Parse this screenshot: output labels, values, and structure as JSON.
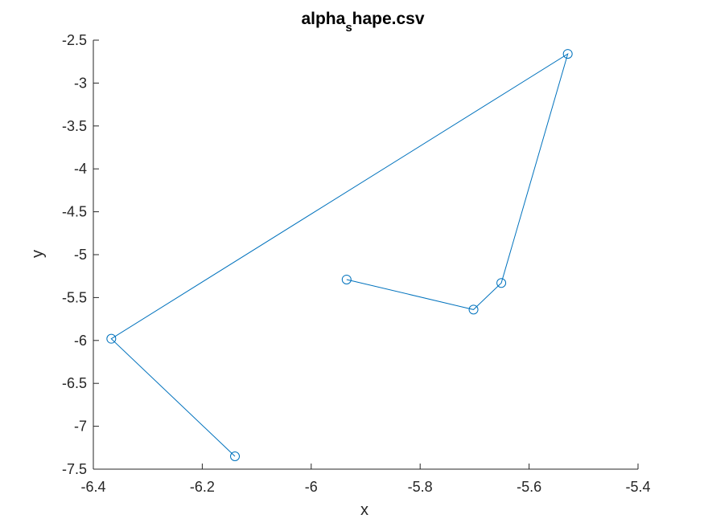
{
  "chart_data": {
    "type": "line",
    "title": {
      "main": "alpha",
      "subscript": "s",
      "rest": "hape.csv"
    },
    "xlabel": "x",
    "ylabel": "y",
    "xlim": [
      -6.4,
      -5.4
    ],
    "ylim": [
      -7.5,
      -2.5
    ],
    "xticks": [
      -6.4,
      -6.2,
      -6,
      -5.8,
      -5.6,
      -5.4
    ],
    "yticks": [
      -2.5,
      -3,
      -3.5,
      -4,
      -4.5,
      -5,
      -5.5,
      -6,
      -6.5,
      -7,
      -7.5
    ],
    "xtick_labels": [
      "-6.4",
      "-6.2",
      "-6",
      "-5.8",
      "-5.6",
      "-5.4"
    ],
    "ytick_labels": [
      "-2.5",
      "-3",
      "-3.5",
      "-4",
      "-4.5",
      "-5",
      "-5.5",
      "-6",
      "-6.5",
      "-7",
      "-7.5"
    ],
    "grid": false,
    "marker": "circle",
    "line_color": "#0072BD",
    "series": [
      {
        "x": [
          -5.935,
          -5.702,
          -5.651,
          -5.529,
          -6.367,
          -6.14
        ],
        "y": [
          -5.29,
          -5.64,
          -5.33,
          -2.66,
          -5.98,
          -7.35
        ]
      }
    ]
  }
}
